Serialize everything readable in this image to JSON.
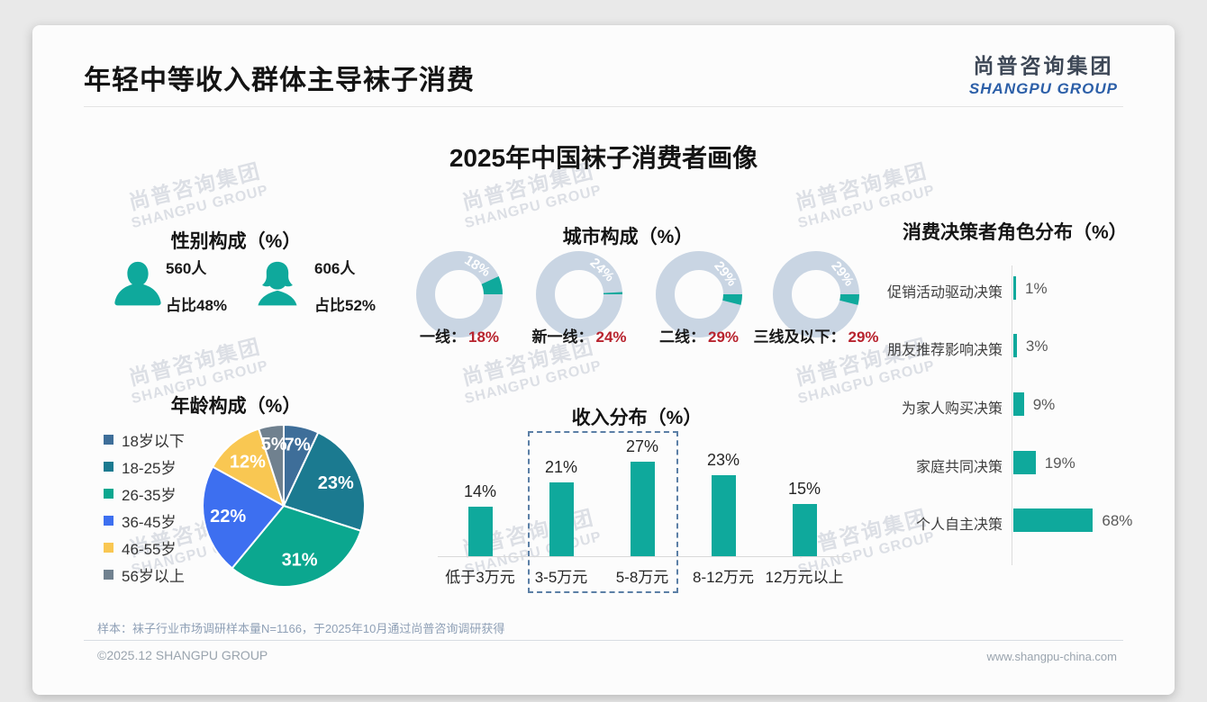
{
  "page": {
    "header_title": "年轻中等收入群体主导袜子消费",
    "logo_cn": "尚普咨询集团",
    "logo_en": "SHANGPU GROUP",
    "main_title": "2025年中国袜子消费者画像",
    "watermark_cn": "尚普咨询集团",
    "watermark_en": "SHANGPU GROUP",
    "footnote": "样本：袜子行业市场调研样本量N=1166，于2025年10月通过尚普咨询调研获得",
    "copyright": "©2025.12 SHANGPU GROUP",
    "website": "www.shangpu-china.com"
  },
  "colors": {
    "teal": "#0fa99c",
    "ring_bg": "#c9d5e3",
    "value_red": "#b8232e",
    "logo_blue": "#2c5fa8",
    "highlight_dash": "#5b7fa6"
  },
  "chart_data": [
    {
      "id": "gender",
      "type": "pictogram",
      "title": "性别构成（%）",
      "items": [
        {
          "label": "男",
          "count": "560人",
          "share": "占比48%"
        },
        {
          "label": "女",
          "count": "606人",
          "share": "占比52%"
        }
      ]
    },
    {
      "id": "city",
      "type": "donut",
      "title": "城市构成（%）",
      "unit": "%",
      "items": [
        {
          "label": "一线",
          "value": 18
        },
        {
          "label": "新一线",
          "value": 24
        },
        {
          "label": "二线",
          "value": 29
        },
        {
          "label": "三线及以下",
          "value": 29
        }
      ]
    },
    {
      "id": "decision",
      "type": "bar-horizontal",
      "title": "消费决策者角色分布（%）",
      "categories": [
        "促销活动驱动决策",
        "朋友推荐影响决策",
        "为家人购买决策",
        "家庭共同决策",
        "个人自主决策"
      ],
      "values": [
        1,
        3,
        9,
        19,
        68
      ],
      "xlim": [
        0,
        100
      ],
      "unit": "%"
    },
    {
      "id": "age",
      "type": "pie",
      "title": "年龄构成（%）",
      "categories": [
        "18岁以下",
        "18-25岁",
        "26-35岁",
        "36-45岁",
        "46-55岁",
        "56岁以上"
      ],
      "values": [
        7,
        23,
        31,
        22,
        12,
        5
      ],
      "colors": [
        "#3e6e99",
        "#1b7a90",
        "#0ba78f",
        "#3d6ff0",
        "#f9c752",
        "#70818f"
      ],
      "legend_position": "left",
      "start_angle": "top",
      "direction": "clockwise"
    },
    {
      "id": "income",
      "type": "bar",
      "title": "收入分布（%）",
      "categories": [
        "低于3万元",
        "3-5万元",
        "5-8万元",
        "8-12万元",
        "12万元以上"
      ],
      "values": [
        14,
        21,
        27,
        23,
        15
      ],
      "ylim": [
        0,
        30
      ],
      "unit": "%",
      "highlight_categories": [
        "3-5万元",
        "5-8万元"
      ]
    }
  ]
}
